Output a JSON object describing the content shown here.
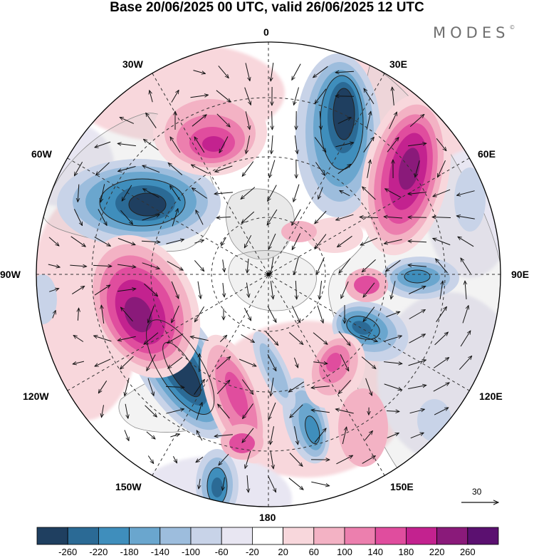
{
  "title": "Base 20/06/2025 00 UTC, valid 26/06/2025 12 UTC",
  "brand": "MODES",
  "brand_mark": "©",
  "map": {
    "projection": "north polar stereographic",
    "field": "geopotential height anomaly (shaded) with wind vectors",
    "longitude_labels": {
      "0": "0",
      "30E": "30E",
      "60E": "60E",
      "90E": "90E",
      "120E": "120E",
      "150E": "150E",
      "180": "180",
      "150W": "150W",
      "120W": "120W",
      "90W": "90W",
      "60W": "60W",
      "30W": "30W"
    },
    "reference_vector_label": "30",
    "colors": {
      "c1": "#1f3f60",
      "c2": "#2b6a95",
      "c3": "#3f8ebc",
      "c4": "#6aa6ce",
      "c5": "#9dbddd",
      "c6": "#c8d3e8",
      "c7": "#e8e6f2",
      "c8": "#ffffff",
      "c9": "#f8d7dc",
      "c10": "#f3b2c4",
      "c11": "#ec7fae",
      "c12": "#e04d9e",
      "c13": "#c3228f",
      "c14": "#8a1a7a",
      "c15": "#5b1070"
    }
  },
  "colorbar": {
    "ticks": [
      "-260",
      "-220",
      "-180",
      "-140",
      "-100",
      "-60",
      "-20",
      "20",
      "60",
      "100",
      "140",
      "180",
      "220",
      "260"
    ],
    "colors": [
      "#1f3f60",
      "#2b6a95",
      "#3f8ebc",
      "#6aa6ce",
      "#9dbddd",
      "#c8d3e8",
      "#e8e6f2",
      "#ffffff",
      "#f8d7dc",
      "#f3b2c4",
      "#ec7fae",
      "#e04d9e",
      "#c3228f",
      "#8a1a7a",
      "#5b1070"
    ]
  }
}
